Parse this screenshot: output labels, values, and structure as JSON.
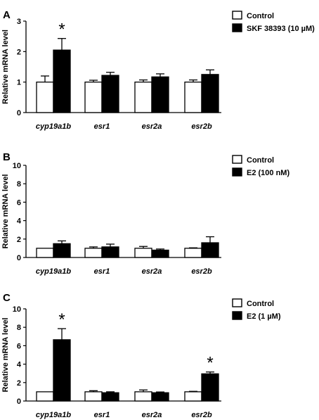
{
  "chart_data": [
    {
      "panel": "A",
      "type": "bar",
      "categories": [
        "cyp19a1b",
        "esr1",
        "esr2a",
        "esr2b"
      ],
      "series": [
        {
          "name": "Control",
          "color": "#ffffff",
          "values": [
            1.0,
            1.0,
            1.0,
            1.0
          ],
          "errors": [
            0.2,
            0.06,
            0.07,
            0.07
          ]
        },
        {
          "name": "SKF 38393 (10 µM)",
          "color": "#000000",
          "values": [
            2.05,
            1.22,
            1.17,
            1.25
          ],
          "errors": [
            0.38,
            0.1,
            0.1,
            0.15
          ]
        }
      ],
      "ylabel": "Relative mRNA level",
      "ylim": [
        0,
        3
      ],
      "yticks": [
        "0",
        "1",
        "2",
        "3"
      ],
      "significance": [
        {
          "category": "cyp19a1b",
          "series": 1,
          "label": "*"
        }
      ],
      "legend_placement": "top-right"
    },
    {
      "panel": "B",
      "type": "bar",
      "categories": [
        "cyp19a1b",
        "esr1",
        "esr2a",
        "esr2b"
      ],
      "series": [
        {
          "name": "Control",
          "color": "#ffffff",
          "values": [
            1.0,
            1.0,
            1.0,
            1.0
          ],
          "errors": [
            0.0,
            0.15,
            0.2,
            0.05
          ]
        },
        {
          "name": "E2 (100 nM)",
          "color": "#000000",
          "values": [
            1.5,
            1.15,
            0.8,
            1.6
          ],
          "errors": [
            0.3,
            0.3,
            0.12,
            0.65
          ]
        }
      ],
      "ylabel": "Relative mRNA level",
      "ylim": [
        0,
        10
      ],
      "yticks": [
        "0",
        "2",
        "4",
        "6",
        "8",
        "10"
      ],
      "significance": [],
      "legend_placement": "top-right"
    },
    {
      "panel": "C",
      "type": "bar",
      "categories": [
        "cyp19a1b",
        "esr1",
        "esr2a",
        "esr2b"
      ],
      "series": [
        {
          "name": "Control",
          "color": "#ffffff",
          "values": [
            1.0,
            1.0,
            1.0,
            1.0
          ],
          "errors": [
            0.0,
            0.12,
            0.2,
            0.05
          ]
        },
        {
          "name": "E2 (1 µM)",
          "color": "#000000",
          "values": [
            6.65,
            0.9,
            0.9,
            2.95
          ],
          "errors": [
            1.2,
            0.1,
            0.08,
            0.2
          ]
        }
      ],
      "ylabel": "Relative mRNA level",
      "ylim": [
        0,
        10
      ],
      "yticks": [
        "0",
        "2",
        "4",
        "6",
        "8",
        "10"
      ],
      "significance": [
        {
          "category": "cyp19a1b",
          "series": 1,
          "label": "*"
        },
        {
          "category": "esr2b",
          "series": 1,
          "label": "*"
        }
      ],
      "legend_placement": "top-right"
    }
  ]
}
